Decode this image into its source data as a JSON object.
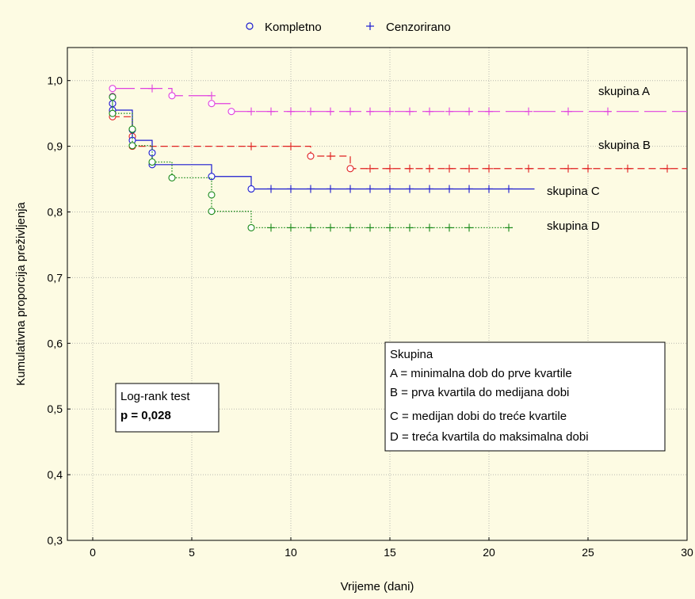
{
  "chart_data": {
    "type": "line",
    "xlabel": "Vrijeme (dani)",
    "ylabel": "Kumulativna proporcija preživljenja",
    "xlim": [
      -2,
      30
    ],
    "ylim": [
      0.3,
      1.05
    ],
    "x_ticks": [
      0,
      5,
      10,
      15,
      20,
      25,
      30
    ],
    "y_ticks": [
      "0,3",
      "0,4",
      "0,5",
      "0,6",
      "0,7",
      "0,8",
      "0,9",
      "1,0"
    ],
    "y_tick_values": [
      0.3,
      0.4,
      0.5,
      0.6,
      0.7,
      0.8,
      0.9,
      1.0
    ],
    "grid": true,
    "legend": {
      "position": "top",
      "entries": [
        {
          "marker": "circle",
          "label": "Kompletno"
        },
        {
          "marker": "plus",
          "label": "Cenzorirano"
        }
      ]
    },
    "series": [
      {
        "name": "skupina A",
        "color": "#e040e0",
        "dash": "long",
        "steps": [
          [
            1,
            0.988
          ],
          [
            4,
            0.977
          ],
          [
            6,
            0.965
          ],
          [
            7,
            0.953
          ]
        ],
        "end_x": 30,
        "complete": [
          [
            1,
            0.988
          ],
          [
            1,
            0.976
          ],
          [
            1,
            0.965
          ],
          [
            1,
            0.953
          ],
          [
            4,
            0.977
          ],
          [
            6,
            0.965
          ],
          [
            7,
            0.953
          ]
        ],
        "censored": [
          [
            3,
            0.988
          ],
          [
            6,
            0.977
          ],
          [
            8,
            0.953
          ],
          [
            9,
            0.953
          ],
          [
            10,
            0.953
          ],
          [
            11,
            0.953
          ],
          [
            12,
            0.953
          ],
          [
            13,
            0.953
          ],
          [
            14,
            0.953
          ],
          [
            15,
            0.953
          ],
          [
            16,
            0.953
          ],
          [
            17,
            0.953
          ],
          [
            18,
            0.953
          ],
          [
            19,
            0.953
          ],
          [
            20,
            0.953
          ],
          [
            22,
            0.953
          ],
          [
            24,
            0.953
          ],
          [
            26,
            0.953
          ]
        ]
      },
      {
        "name": "skupina B",
        "color": "#e02020",
        "dash": "medium",
        "steps": [
          [
            1,
            0.945
          ],
          [
            2,
            0.9
          ],
          [
            11,
            0.885
          ],
          [
            13,
            0.866
          ]
        ],
        "end_x": 30,
        "complete": [
          [
            1,
            0.945
          ],
          [
            2,
            0.915
          ],
          [
            2,
            0.9
          ],
          [
            11,
            0.885
          ],
          [
            13,
            0.866
          ]
        ],
        "censored": [
          [
            8,
            0.9
          ],
          [
            10,
            0.9
          ],
          [
            12,
            0.885
          ],
          [
            14,
            0.866
          ],
          [
            15,
            0.866
          ],
          [
            16,
            0.866
          ],
          [
            17,
            0.866
          ],
          [
            18,
            0.866
          ],
          [
            19,
            0.866
          ],
          [
            20,
            0.866
          ],
          [
            22,
            0.866
          ],
          [
            24,
            0.866
          ],
          [
            25,
            0.866
          ],
          [
            27,
            0.866
          ],
          [
            29,
            0.866
          ]
        ]
      },
      {
        "name": "skupina C",
        "color": "#1a1ad0",
        "dash": "solid",
        "steps": [
          [
            1,
            0.955
          ],
          [
            2,
            0.909
          ],
          [
            3,
            0.872
          ],
          [
            6,
            0.854
          ],
          [
            8,
            0.835
          ]
        ],
        "end_x": 22.3,
        "complete": [
          [
            1,
            0.965
          ],
          [
            1,
            0.955
          ],
          [
            2,
            0.925
          ],
          [
            2,
            0.909
          ],
          [
            3,
            0.89
          ],
          [
            3,
            0.872
          ],
          [
            6,
            0.854
          ],
          [
            8,
            0.835
          ]
        ],
        "censored": [
          [
            9,
            0.835
          ],
          [
            10,
            0.835
          ],
          [
            11,
            0.835
          ],
          [
            12,
            0.835
          ],
          [
            13,
            0.835
          ],
          [
            14,
            0.835
          ],
          [
            15,
            0.835
          ],
          [
            16,
            0.835
          ],
          [
            17,
            0.835
          ],
          [
            18,
            0.835
          ],
          [
            19,
            0.835
          ],
          [
            20,
            0.835
          ],
          [
            21,
            0.835
          ]
        ]
      },
      {
        "name": "skupina D",
        "color": "#1a8a1a",
        "dash": "dotted",
        "steps": [
          [
            1,
            0.95
          ],
          [
            2,
            0.901
          ],
          [
            3,
            0.876
          ],
          [
            4,
            0.852
          ],
          [
            6,
            0.801
          ],
          [
            8,
            0.776
          ]
        ],
        "end_x": 21.2,
        "complete": [
          [
            1,
            0.975
          ],
          [
            1,
            0.95
          ],
          [
            2,
            0.926
          ],
          [
            2,
            0.901
          ],
          [
            3,
            0.876
          ],
          [
            4,
            0.852
          ],
          [
            6,
            0.826
          ],
          [
            6,
            0.801
          ],
          [
            8,
            0.776
          ]
        ],
        "censored": [
          [
            9,
            0.776
          ],
          [
            10,
            0.776
          ],
          [
            11,
            0.776
          ],
          [
            12,
            0.776
          ],
          [
            13,
            0.776
          ],
          [
            14,
            0.776
          ],
          [
            15,
            0.776
          ],
          [
            16,
            0.776
          ],
          [
            17,
            0.776
          ],
          [
            18,
            0.776
          ],
          [
            19,
            0.776
          ],
          [
            21,
            0.776
          ]
        ]
      }
    ],
    "annotations": {
      "logrank": {
        "title": "Log-rank test",
        "value": "p = 0,028"
      },
      "skupina_box": {
        "title": "Skupina",
        "lines": [
          "A = minimalna dob do prve kvartile",
          "B = prva kvartila do medijana dobi",
          "C = medijan dobi do treće kvartile",
          "D = treća kvartila do maksimalna dobi"
        ]
      }
    }
  }
}
